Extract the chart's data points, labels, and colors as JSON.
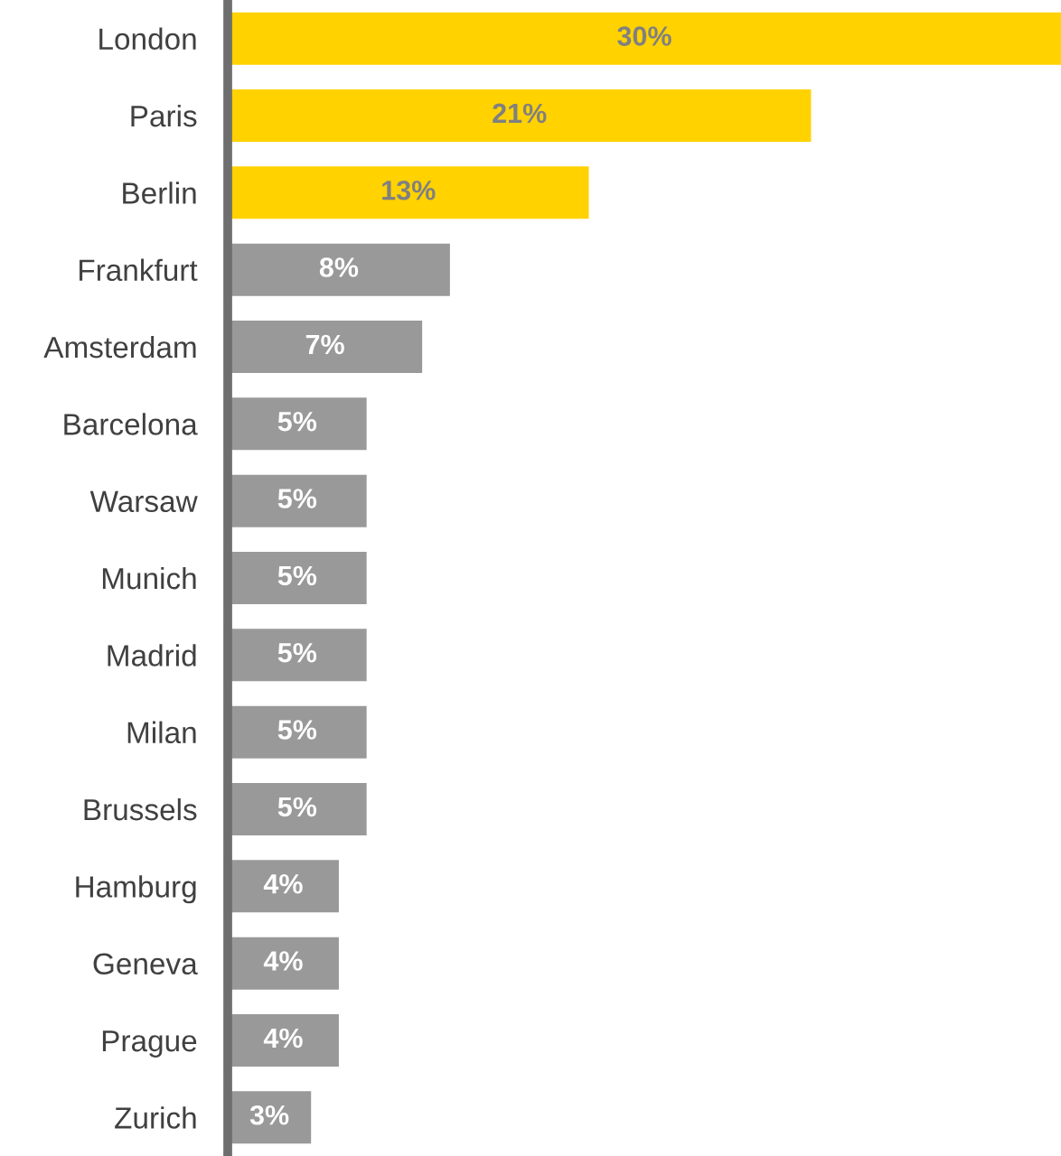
{
  "chart_data": {
    "type": "bar",
    "orientation": "horizontal",
    "categories": [
      "London",
      "Paris",
      "Berlin",
      "Frankfurt",
      "Amsterdam",
      "Barcelona",
      "Warsaw",
      "Munich",
      "Madrid",
      "Milan",
      "Brussels",
      "Hamburg",
      "Geneva",
      "Prague",
      "Zurich"
    ],
    "values": [
      30,
      21,
      13,
      8,
      7,
      5,
      5,
      5,
      5,
      5,
      5,
      4,
      4,
      4,
      3
    ],
    "colors": [
      "#ffd200",
      "#ffd200",
      "#ffd200",
      "#999999",
      "#999999",
      "#999999",
      "#999999",
      "#999999",
      "#999999",
      "#999999",
      "#999999",
      "#999999",
      "#999999",
      "#999999",
      "#999999"
    ],
    "value_labels": [
      "30%",
      "21%",
      "13%",
      "8%",
      "7%",
      "5%",
      "5%",
      "5%",
      "5%",
      "5%",
      "5%",
      "4%",
      "4%",
      "4%",
      "3%"
    ],
    "xlim": [
      0,
      30
    ],
    "tick_labels": "y",
    "grid": false
  }
}
